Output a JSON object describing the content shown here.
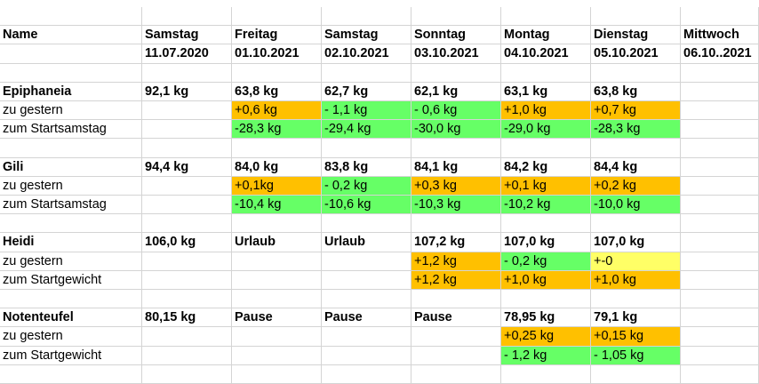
{
  "colors": {
    "orange": "#ffc000",
    "green": "#66ff66",
    "yellow": "#ffff66",
    "grid": "#d4d4d4"
  },
  "rows": [
    [
      "",
      "",
      "",
      "",
      "",
      "",
      "",
      ""
    ],
    [
      {
        "t": "Name",
        "b": 1
      },
      {
        "t": "Samstag",
        "b": 1
      },
      {
        "t": "Freitag",
        "b": 1
      },
      {
        "t": "Samstag",
        "b": 1
      },
      {
        "t": "Sonntag",
        "b": 1
      },
      {
        "t": "Montag",
        "b": 1
      },
      {
        "t": "Dienstag",
        "b": 1
      },
      {
        "t": "Mittwoch",
        "b": 1
      }
    ],
    [
      "",
      {
        "t": "11.07.2020",
        "b": 1
      },
      {
        "t": "01.10.2021",
        "b": 1
      },
      {
        "t": "02.10.2021",
        "b": 1
      },
      {
        "t": "03.10.2021",
        "b": 1
      },
      {
        "t": "04.10.2021",
        "b": 1
      },
      {
        "t": "05.10.2021",
        "b": 1
      },
      {
        "t": "06.10..2021",
        "b": 1
      }
    ],
    [
      "",
      "",
      "",
      "",
      "",
      "",
      "",
      ""
    ],
    [
      {
        "t": "Epiphaneia",
        "b": 1
      },
      {
        "t": "92,1 kg",
        "b": 1
      },
      {
        "t": "63,8 kg",
        "b": 1
      },
      {
        "t": "62,7 kg",
        "b": 1
      },
      {
        "t": "62,1 kg",
        "b": 1
      },
      {
        "t": "63,1 kg",
        "b": 1
      },
      {
        "t": "63,8 kg",
        "b": 1
      },
      ""
    ],
    [
      {
        "t": "zu gestern"
      },
      "",
      {
        "t": "+0,6 kg",
        "c": "orange"
      },
      {
        "t": "- 1,1 kg",
        "c": "green"
      },
      {
        "t": "- 0,6 kg",
        "c": "green"
      },
      {
        "t": "+1,0 kg",
        "c": "orange"
      },
      {
        "t": "+0,7 kg",
        "c": "orange"
      },
      ""
    ],
    [
      {
        "t": "zum Startsamstag"
      },
      "",
      {
        "t": "-28,3 kg",
        "c": "green"
      },
      {
        "t": "-29,4 kg",
        "c": "green"
      },
      {
        "t": "-30,0 kg",
        "c": "green"
      },
      {
        "t": "-29,0 kg",
        "c": "green"
      },
      {
        "t": "-28,3 kg",
        "c": "green"
      },
      ""
    ],
    [
      "",
      "",
      "",
      "",
      "",
      "",
      "",
      ""
    ],
    [
      {
        "t": "Gili",
        "b": 1
      },
      {
        "t": "94,4 kg",
        "b": 1
      },
      {
        "t": "84,0 kg",
        "b": 1
      },
      {
        "t": "83,8 kg",
        "b": 1
      },
      {
        "t": "84,1 kg",
        "b": 1
      },
      {
        "t": "84,2 kg",
        "b": 1
      },
      {
        "t": "84,4 kg",
        "b": 1
      },
      ""
    ],
    [
      {
        "t": "zu gestern"
      },
      "",
      {
        "t": "+0,1kg",
        "c": "orange"
      },
      {
        "t": "- 0,2 kg",
        "c": "green"
      },
      {
        "t": "+0,3 kg",
        "c": "orange"
      },
      {
        "t": "+0,1 kg",
        "c": "orange"
      },
      {
        "t": "+0,2 kg",
        "c": "orange"
      },
      ""
    ],
    [
      {
        "t": "zum Startsamstag"
      },
      "",
      {
        "t": "-10,4 kg",
        "c": "green"
      },
      {
        "t": "-10,6 kg",
        "c": "green"
      },
      {
        "t": "-10,3 kg",
        "c": "green"
      },
      {
        "t": "-10,2 kg",
        "c": "green"
      },
      {
        "t": "-10,0 kg",
        "c": "green"
      },
      ""
    ],
    [
      "",
      "",
      "",
      "",
      "",
      "",
      "",
      ""
    ],
    [
      {
        "t": "Heidi",
        "b": 1
      },
      {
        "t": "106,0 kg",
        "b": 1
      },
      {
        "t": "Urlaub",
        "b": 1
      },
      {
        "t": "Urlaub",
        "b": 1
      },
      {
        "t": "107,2 kg",
        "b": 1
      },
      {
        "t": "107,0 kg",
        "b": 1
      },
      {
        "t": "107,0 kg",
        "b": 1
      },
      ""
    ],
    [
      {
        "t": "zu gestern"
      },
      "",
      "",
      "",
      {
        "t": "+1,2 kg",
        "c": "orange"
      },
      {
        "t": "- 0,2 kg",
        "c": "green"
      },
      {
        "t": "+-0",
        "c": "yellow"
      },
      ""
    ],
    [
      {
        "t": "zum Startgewicht"
      },
      "",
      "",
      "",
      {
        "t": "+1,2 kg",
        "c": "orange"
      },
      {
        "t": "+1,0 kg",
        "c": "orange"
      },
      {
        "t": "+1,0 kg",
        "c": "orange"
      },
      ""
    ],
    [
      "",
      "",
      "",
      "",
      "",
      "",
      "",
      ""
    ],
    [
      {
        "t": "Notenteufel",
        "b": 1
      },
      {
        "t": "80,15 kg",
        "b": 1
      },
      {
        "t": "Pause",
        "b": 1
      },
      {
        "t": "Pause",
        "b": 1
      },
      {
        "t": "Pause",
        "b": 1
      },
      {
        "t": "78,95 kg",
        "b": 1
      },
      {
        "t": "79,1 kg",
        "b": 1
      },
      ""
    ],
    [
      {
        "t": "zu gestern"
      },
      "",
      "",
      "",
      "",
      {
        "t": "+0,25 kg",
        "c": "orange"
      },
      {
        "t": "+0,15 kg",
        "c": "orange"
      },
      ""
    ],
    [
      {
        "t": "zum Startgewicht"
      },
      "",
      "",
      "",
      "",
      {
        "t": "- 1,2 kg",
        "c": "green"
      },
      {
        "t": "- 1,05 kg",
        "c": "green"
      },
      ""
    ],
    [
      "",
      "",
      "",
      "",
      "",
      "",
      "",
      ""
    ]
  ]
}
